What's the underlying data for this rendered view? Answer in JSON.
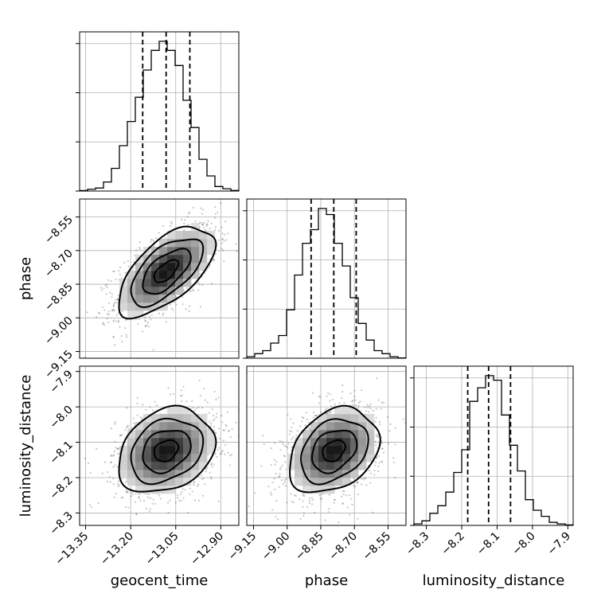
{
  "chart_data": {
    "type": "corner",
    "parameters": [
      "geocent_time",
      "phase",
      "luminosity_distance"
    ],
    "axis_labels": [
      "geocent_time",
      "phase",
      "luminosity_distance"
    ],
    "ranges": {
      "geocent_time": [
        -13.37,
        -12.84
      ],
      "phase": [
        -9.18,
        -8.47
      ],
      "luminosity_distance": [
        -8.335,
        -7.885
      ]
    },
    "ticks": {
      "geocent_time": [
        "−13.35",
        "−13.20",
        "−13.05",
        "−12.90"
      ],
      "phase": [
        "−9.15",
        "−9.00",
        "−8.85",
        "−8.70",
        "−8.55"
      ],
      "luminosity_distance": [
        "−8.3",
        "−8.2",
        "−8.1",
        "−8.0",
        "−7.9"
      ]
    },
    "tick_values": {
      "geocent_time": [
        -13.35,
        -13.2,
        -13.05,
        -12.9
      ],
      "phase": [
        -9.15,
        -9.0,
        -8.85,
        -8.7,
        -8.55
      ],
      "luminosity_distance": [
        -8.3,
        -8.2,
        -8.1,
        -8.0,
        -7.9
      ]
    },
    "quantiles": {
      "geocent_time": [
        -13.16,
        -13.082,
        -13.003
      ],
      "phase": [
        -8.893,
        -8.792,
        -8.692
      ],
      "luminosity_distance": [
        -8.183,
        -8.124,
        -8.062
      ]
    },
    "histograms": {
      "geocent_time": [
        0.003,
        0.012,
        0.02,
        0.06,
        0.15,
        0.3,
        0.46,
        0.62,
        0.8,
        0.93,
        0.99,
        0.93,
        0.83,
        0.6,
        0.42,
        0.21,
        0.1,
        0.03,
        0.015,
        0.004
      ],
      "phase": [
        0.01,
        0.03,
        0.05,
        0.1,
        0.15,
        0.32,
        0.55,
        0.76,
        0.85,
        0.99,
        0.95,
        0.76,
        0.61,
        0.4,
        0.23,
        0.12,
        0.05,
        0.03,
        0.01,
        0.002
      ],
      "luminosity_distance": [
        0.01,
        0.03,
        0.08,
        0.13,
        0.22,
        0.35,
        0.5,
        0.82,
        0.91,
        0.99,
        0.96,
        0.73,
        0.53,
        0.36,
        0.17,
        0.1,
        0.06,
        0.02,
        0.01,
        0.003
      ]
    },
    "means": {
      "geocent_time": -13.082,
      "phase": -8.792,
      "luminosity_distance": -8.124
    },
    "sigmas": {
      "geocent_time": 0.08,
      "phase": 0.1,
      "luminosity_distance": 0.06
    },
    "correlations": {
      "phase|geocent_time": 0.62,
      "luminosity_distance|geocent_time": 0.25,
      "luminosity_distance|phase": 0.3
    },
    "contour_levels_sigma": [
      0.5,
      1.0,
      1.5,
      2.0
    ],
    "grid": true,
    "colors": {
      "line": "#000000",
      "grid": "#b0b0b0",
      "scatter": "#000000"
    }
  }
}
